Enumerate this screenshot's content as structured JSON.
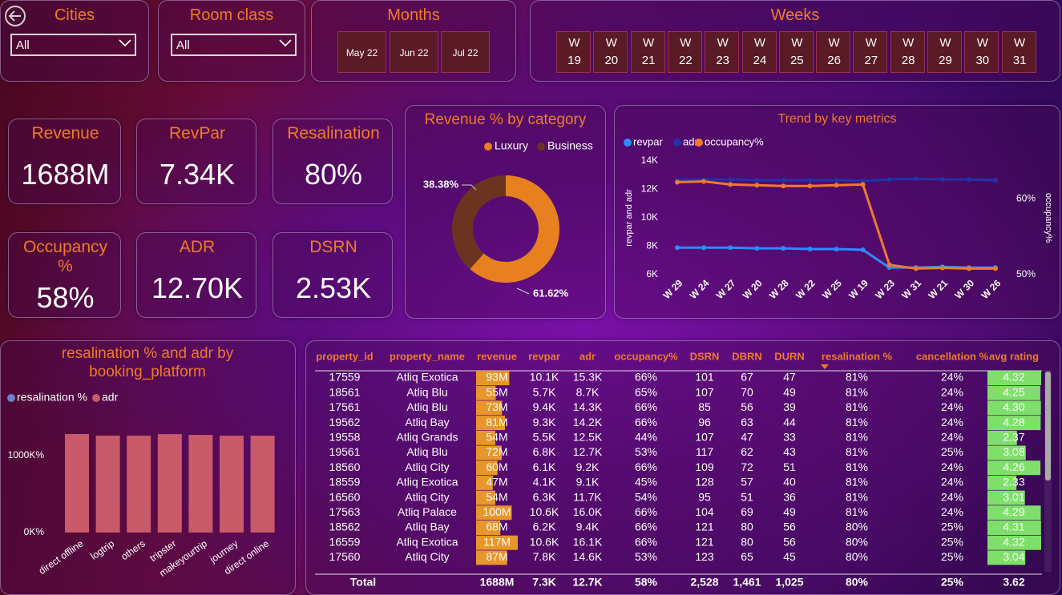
{
  "filters": {
    "cities": {
      "title": "Cities",
      "selected": "All"
    },
    "room_class": {
      "title": "Room class",
      "selected": "All"
    },
    "months": {
      "title": "Months",
      "options": [
        "May 22",
        "Jun 22",
        "Jul 22"
      ]
    },
    "weeks": {
      "title": "Weeks",
      "options": [
        "W 19",
        "W 20",
        "W 21",
        "W 22",
        "W 23",
        "W 24",
        "W 25",
        "W 26",
        "W 27",
        "W 28",
        "W 29",
        "W 30",
        "W 31"
      ]
    }
  },
  "kpis": [
    {
      "label": "Revenue",
      "value": "1688M"
    },
    {
      "label": "RevPar",
      "value": "7.34K"
    },
    {
      "label": "Resalination",
      "value": "80%"
    },
    {
      "label": "Occupancy %",
      "value": "58%"
    },
    {
      "label": "ADR",
      "value": "12.70K"
    },
    {
      "label": "DSRN",
      "value": "2.53K"
    }
  ],
  "chart_data": [
    {
      "type": "pie",
      "title": "Revenue % by category",
      "categories": [
        "Luxury",
        "Business"
      ],
      "values": [
        61.62,
        38.38
      ],
      "value_labels": [
        "61.62%",
        "38.38%"
      ],
      "colors": [
        "#e8801f",
        "#6b3420"
      ],
      "donut": true
    },
    {
      "type": "line",
      "title": "Trend by key metrics",
      "categories": [
        "W 29",
        "W 24",
        "W 27",
        "W 20",
        "W 28",
        "W 22",
        "W 25",
        "W 19",
        "W 23",
        "W 31",
        "W 21",
        "W 30",
        "W 26"
      ],
      "series": [
        {
          "name": "revpar",
          "color": "#2a8cff",
          "values": [
            7900,
            7900,
            7900,
            7850,
            7850,
            7800,
            7800,
            7750,
            6500,
            6500,
            6550,
            6500,
            6500
          ]
        },
        {
          "name": "adr",
          "color": "#2233a8",
          "values": [
            12650,
            12700,
            12700,
            12650,
            12650,
            12650,
            12650,
            12600,
            12700,
            12750,
            12700,
            12700,
            12650
          ]
        },
        {
          "name": "occupancy%",
          "color": "#f07a2a",
          "axis": "y2",
          "values": [
            62.2,
            62.3,
            61.9,
            61.8,
            61.7,
            61.7,
            61.8,
            61.9,
            51.3,
            50.8,
            50.9,
            50.8,
            50.8
          ]
        }
      ],
      "ylabel": "revpar and adr",
      "y2label": "occupancy%",
      "ylim": [
        6000,
        14000
      ],
      "yticks": [
        {
          "value": 6000,
          "label": "6K"
        },
        {
          "value": 8000,
          "label": "8K"
        },
        {
          "value": 10000,
          "label": "10K"
        },
        {
          "value": 12000,
          "label": "12K"
        },
        {
          "value": 14000,
          "label": "14K"
        }
      ],
      "y2lim": [
        50,
        65
      ],
      "y2ticks": [
        {
          "value": 50,
          "label": "50%"
        },
        {
          "value": 60,
          "label": "60%"
        }
      ],
      "legend": "top-left",
      "grid": false
    },
    {
      "type": "bar",
      "title": "resalination % and adr by booking_platform",
      "categories": [
        "direct offline",
        "logtrip",
        "others",
        "tripster",
        "makeyourtrip",
        "journey",
        "direct online"
      ],
      "series": [
        {
          "name": "resalination %",
          "color": "#6f7fd0",
          "values": [
            80,
            80,
            80,
            80,
            80,
            80,
            80
          ]
        },
        {
          "name": "adr",
          "color": "#c85a6a",
          "values": [
            1281000,
            1260000,
            1260000,
            1280000,
            1270000,
            1260000,
            1260000
          ]
        }
      ],
      "ylim": [
        0,
        1350000
      ],
      "yticks": [
        {
          "value": 0,
          "label": "0K%"
        },
        {
          "value": 1000000,
          "label": "1000K%"
        }
      ],
      "legend": "top-left",
      "grid": false
    }
  ],
  "table": {
    "columns": [
      "property_id",
      "property_name",
      "revenue",
      "revpar",
      "adr",
      "occupancy%",
      "DSRN",
      "DBRN",
      "DURN",
      "resalination %",
      "cancellation %",
      "avg rating"
    ],
    "rows": [
      [
        "17559",
        "Atliq Exotica",
        "93M",
        "10.1K",
        "15.3K",
        "66%",
        "101",
        "67",
        "47",
        "81%",
        "24%",
        "4.32"
      ],
      [
        "18561",
        "Atliq Blu",
        "55M",
        "5.7K",
        "8.7K",
        "65%",
        "107",
        "70",
        "49",
        "81%",
        "24%",
        "4.25"
      ],
      [
        "17561",
        "Atliq Blu",
        "73M",
        "9.4K",
        "14.3K",
        "66%",
        "85",
        "56",
        "39",
        "81%",
        "24%",
        "4.30"
      ],
      [
        "19562",
        "Atliq Bay",
        "81M",
        "9.3K",
        "14.2K",
        "66%",
        "96",
        "63",
        "44",
        "81%",
        "24%",
        "4.28"
      ],
      [
        "19558",
        "Atliq Grands",
        "54M",
        "5.5K",
        "12.5K",
        "44%",
        "107",
        "47",
        "33",
        "81%",
        "24%",
        "2.37"
      ],
      [
        "19561",
        "Atliq Blu",
        "72M",
        "6.8K",
        "12.7K",
        "53%",
        "117",
        "62",
        "43",
        "81%",
        "25%",
        "3.08"
      ],
      [
        "18560",
        "Atliq City",
        "60M",
        "6.1K",
        "9.2K",
        "66%",
        "109",
        "72",
        "51",
        "81%",
        "24%",
        "4.26"
      ],
      [
        "18559",
        "Atliq Exotica",
        "47M",
        "4.1K",
        "9.1K",
        "45%",
        "128",
        "57",
        "40",
        "81%",
        "24%",
        "2.33"
      ],
      [
        "16560",
        "Atliq City",
        "54M",
        "6.3K",
        "11.7K",
        "54%",
        "95",
        "51",
        "36",
        "81%",
        "24%",
        "3.01"
      ],
      [
        "17563",
        "Atliq Palace",
        "100M",
        "10.6K",
        "16.0K",
        "66%",
        "104",
        "69",
        "49",
        "81%",
        "24%",
        "4.29"
      ],
      [
        "18562",
        "Atliq Bay",
        "68M",
        "6.2K",
        "9.4K",
        "66%",
        "121",
        "80",
        "56",
        "80%",
        "25%",
        "4.31"
      ],
      [
        "16559",
        "Atliq Exotica",
        "117M",
        "10.6K",
        "16.1K",
        "66%",
        "121",
        "80",
        "56",
        "80%",
        "25%",
        "4.32"
      ],
      [
        "17560",
        "Atliq City",
        "87M",
        "7.8K",
        "14.6K",
        "53%",
        "123",
        "65",
        "45",
        "80%",
        "25%",
        "3.04"
      ]
    ],
    "totals": {
      "label": "Total",
      "values": [
        "1688M",
        "7.3K",
        "12.7K",
        "58%",
        "2,528",
        "1,461",
        "1,025",
        "80%",
        "25%",
        "3.62"
      ]
    }
  }
}
